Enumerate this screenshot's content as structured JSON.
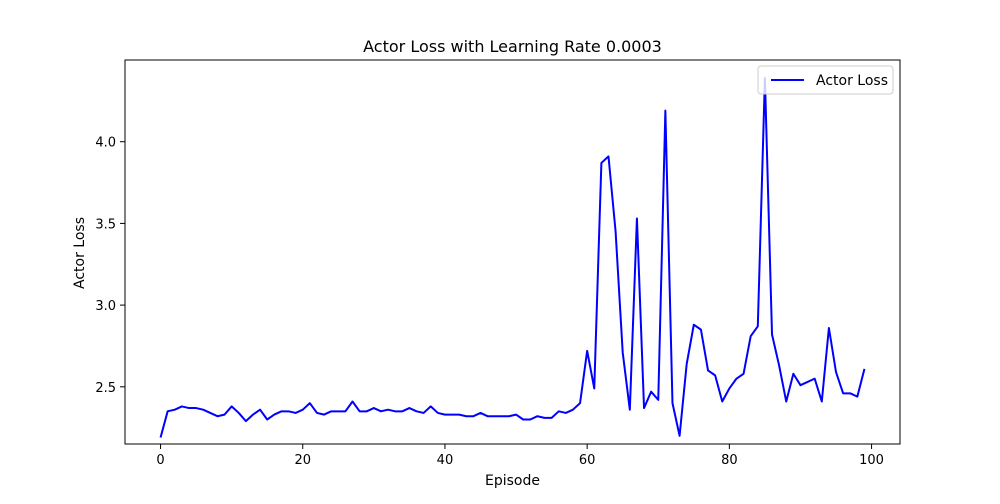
{
  "chart_data": {
    "type": "line",
    "title": "Actor Loss with Learning Rate 0.0003",
    "xlabel": "Episode",
    "ylabel": "Actor Loss",
    "xlim": [
      -5,
      104
    ],
    "ylim": [
      2.15,
      4.5
    ],
    "xticks": [
      0,
      20,
      40,
      60,
      80,
      100
    ],
    "yticks": [
      2.5,
      3.0,
      3.5,
      4.0
    ],
    "xtick_labels": [
      "0",
      "20",
      "40",
      "60",
      "80",
      "100"
    ],
    "ytick_labels": [
      "2.5",
      "3.0",
      "3.5",
      "4.0"
    ],
    "grid": false,
    "legend": "upper right",
    "series": [
      {
        "name": "Actor Loss",
        "color": "#0000ff",
        "x": [
          0,
          1,
          2,
          3,
          4,
          5,
          6,
          7,
          8,
          9,
          10,
          11,
          12,
          13,
          14,
          15,
          16,
          17,
          18,
          19,
          20,
          21,
          22,
          23,
          24,
          25,
          26,
          27,
          28,
          29,
          30,
          31,
          32,
          33,
          34,
          35,
          36,
          37,
          38,
          39,
          40,
          41,
          42,
          43,
          44,
          45,
          46,
          47,
          48,
          49,
          50,
          51,
          52,
          53,
          54,
          55,
          56,
          57,
          58,
          59,
          60,
          61,
          62,
          63,
          64,
          65,
          66,
          67,
          68,
          69,
          70,
          71,
          72,
          73,
          74,
          75,
          76,
          77,
          78,
          79,
          80,
          81,
          82,
          83,
          84,
          85,
          86,
          87,
          88,
          89,
          90,
          91,
          92,
          93,
          94,
          95,
          96,
          97,
          98,
          99
        ],
        "values": [
          2.19,
          2.35,
          2.36,
          2.38,
          2.37,
          2.37,
          2.36,
          2.34,
          2.32,
          2.33,
          2.38,
          2.34,
          2.29,
          2.33,
          2.36,
          2.3,
          2.33,
          2.35,
          2.35,
          2.34,
          2.36,
          2.4,
          2.34,
          2.33,
          2.35,
          2.35,
          2.35,
          2.41,
          2.35,
          2.35,
          2.37,
          2.35,
          2.36,
          2.35,
          2.35,
          2.37,
          2.35,
          2.34,
          2.38,
          2.34,
          2.33,
          2.33,
          2.33,
          2.32,
          2.32,
          2.34,
          2.32,
          2.32,
          2.32,
          2.32,
          2.33,
          2.3,
          2.3,
          2.32,
          2.31,
          2.31,
          2.35,
          2.34,
          2.36,
          2.4,
          2.72,
          2.49,
          3.87,
          3.91,
          3.45,
          2.71,
          2.36,
          3.53,
          2.37,
          2.47,
          2.42,
          4.19,
          2.4,
          2.2,
          2.64,
          2.88,
          2.85,
          2.6,
          2.57,
          2.41,
          2.49,
          2.55,
          2.58,
          2.81,
          2.87,
          4.39,
          2.82,
          2.63,
          2.41,
          2.58,
          2.51,
          2.53,
          2.55,
          2.41,
          2.86,
          2.59,
          2.46,
          2.46,
          2.44,
          2.61
        ]
      }
    ]
  }
}
